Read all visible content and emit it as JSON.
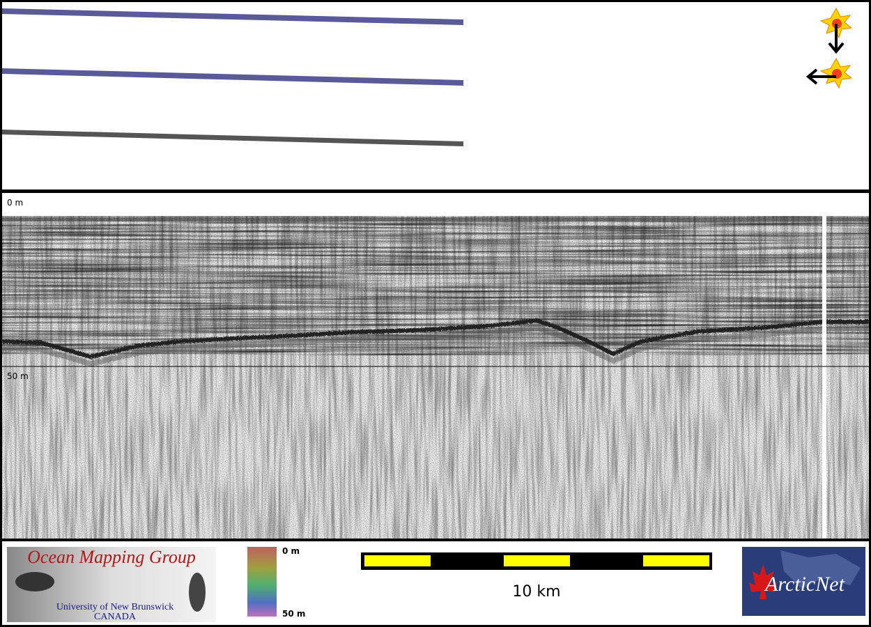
{
  "profile": {
    "depth_top": "0 m",
    "depth_mid": "50 m"
  },
  "legend": {
    "logo": {
      "title": "Ocean Mapping Group",
      "subtitle": "University of New Brunswick",
      "country": "CANADA"
    },
    "colorbar": {
      "top": "0 m",
      "bottom": "50 m"
    },
    "scale": "10 km",
    "partner": "ArcticNet"
  }
}
